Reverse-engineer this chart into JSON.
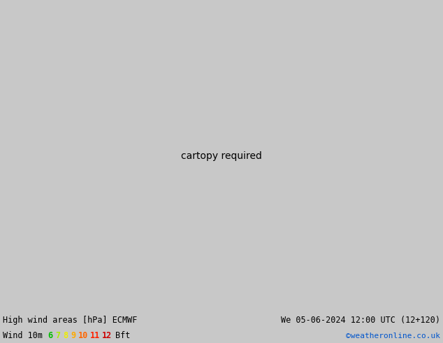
{
  "title_left": "High wind areas [hPa] ECMWF",
  "title_right": "We 05-06-2024 12:00 UTC (12+120)",
  "copyright": "©weatheronline.co.uk",
  "wind_label": "Wind 10m",
  "bft_values": [
    "6",
    "7",
    "8",
    "9",
    "10",
    "11",
    "12"
  ],
  "bft_colors": [
    "#00bb00",
    "#aaee00",
    "#eeee00",
    "#ffaa00",
    "#ff6600",
    "#ff2200",
    "#cc0000"
  ],
  "bft_suffix": "Bft",
  "bg_color": "#c8c8c8",
  "ocean_color": "#e8e8f0",
  "land_green": "#a8d890",
  "land_gray": "#b0b8a8",
  "isobar_black": "#000000",
  "isobar_blue": "#0044cc",
  "isobar_red": "#cc2200",
  "bottom_bg": "#c8c8c8",
  "figsize": [
    6.34,
    4.9
  ],
  "dpi": 100,
  "lon_min": 88,
  "lon_max": 170,
  "lat_min": -12,
  "lat_max": 52
}
